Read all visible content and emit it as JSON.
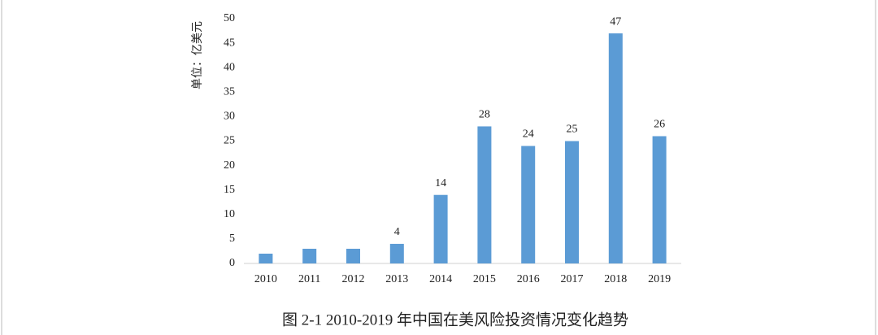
{
  "chart_data": {
    "type": "bar",
    "title": "图 2-1  2010-2019 年中国在美风险投资情况变化趋势",
    "y_label": "单位：亿美元",
    "categories": [
      "2010",
      "2011",
      "2012",
      "2013",
      "2014",
      "2015",
      "2016",
      "2017",
      "2018",
      "2019"
    ],
    "values": [
      2,
      3,
      3,
      4,
      14,
      28,
      24,
      25,
      47,
      26
    ],
    "value_labels": [
      null,
      null,
      null,
      "4",
      "14",
      "28",
      "24",
      "25",
      "47",
      "26"
    ],
    "color": "#5b9bd5",
    "ylim": [
      0,
      50
    ],
    "yticks": [
      0,
      5,
      10,
      15,
      20,
      25,
      30,
      35,
      40,
      45,
      50
    ],
    "grid": false
  }
}
